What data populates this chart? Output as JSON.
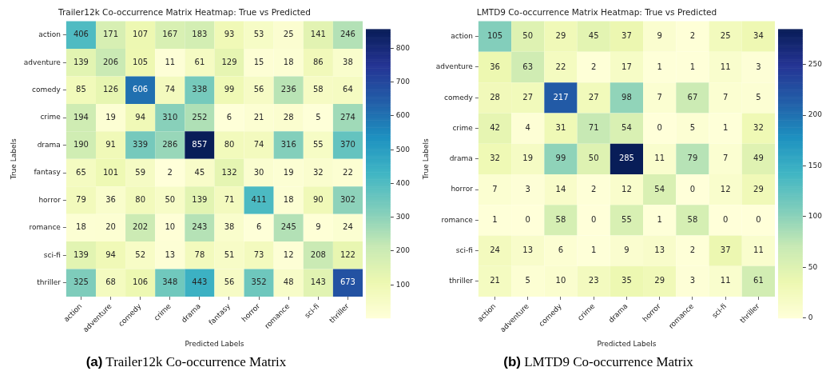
{
  "chart_data": [
    {
      "type": "heatmap",
      "title": "Trailer12k Co-occurrence Matrix Heatmap: True vs Predicted",
      "xlabel": "Predicted Labels",
      "ylabel": "True Labels",
      "categories": [
        "action",
        "adventure",
        "comedy",
        "crime",
        "drama",
        "fantasy",
        "horror",
        "romance",
        "sci-fi",
        "thriller"
      ],
      "y_categories": [
        "action",
        "adventure",
        "comedy",
        "crime",
        "drama",
        "fantasy",
        "horror",
        "romance",
        "sci-fi",
        "thriller"
      ],
      "cells": [
        [
          406,
          171,
          107,
          167,
          183,
          93,
          53,
          25,
          141,
          246
        ],
        [
          139,
          206,
          105,
          11,
          61,
          129,
          15,
          18,
          86,
          38
        ],
        [
          85,
          126,
          606,
          74,
          338,
          99,
          56,
          236,
          58,
          64
        ],
        [
          194,
          19,
          94,
          310,
          252,
          6,
          21,
          28,
          5,
          274
        ],
        [
          190,
          91,
          339,
          286,
          857,
          80,
          74,
          316,
          55,
          370
        ],
        [
          65,
          101,
          59,
          2,
          45,
          132,
          30,
          19,
          32,
          22
        ],
        [
          79,
          36,
          80,
          50,
          139,
          71,
          411,
          18,
          90,
          302
        ],
        [
          18,
          20,
          202,
          10,
          243,
          38,
          6,
          245,
          9,
          24
        ],
        [
          139,
          94,
          52,
          13,
          78,
          51,
          73,
          12,
          208,
          122
        ],
        [
          325,
          68,
          106,
          348,
          443,
          56,
          352,
          48,
          143,
          673
        ]
      ],
      "data_labels": true,
      "clim": [
        2,
        857
      ],
      "cticks": [
        100,
        200,
        300,
        400,
        500,
        600,
        700,
        800
      ],
      "annotations": [
        "(a) Trailer12k Co-occurrence Matrix"
      ]
    },
    {
      "type": "heatmap",
      "title": "LMTD9 Co-occurrence Matrix Heatmap: True vs Predicted",
      "xlabel": "Predicted Labels",
      "ylabel": "True Labels",
      "categories": [
        "action",
        "adventure",
        "comedy",
        "crime",
        "drama",
        "horror",
        "romance",
        "sci-fi",
        "thriller"
      ],
      "y_categories": [
        "action",
        "adventure",
        "comedy",
        "crime",
        "drama",
        "horror",
        "romance",
        "sci-fi",
        "thriller"
      ],
      "cells": [
        [
          105,
          50,
          29,
          45,
          37,
          9,
          2,
          25,
          34
        ],
        [
          36,
          63,
          22,
          2,
          17,
          1,
          1,
          11,
          3
        ],
        [
          28,
          27,
          217,
          27,
          98,
          7,
          67,
          7,
          5
        ],
        [
          42,
          4,
          31,
          71,
          54,
          0,
          5,
          1,
          32
        ],
        [
          32,
          19,
          99,
          50,
          285,
          11,
          79,
          7,
          49
        ],
        [
          7,
          3,
          14,
          2,
          12,
          54,
          0,
          12,
          29
        ],
        [
          1,
          0,
          58,
          0,
          55,
          1,
          58,
          0,
          0
        ],
        [
          24,
          13,
          6,
          1,
          9,
          13,
          2,
          37,
          11
        ],
        [
          21,
          5,
          10,
          23,
          35,
          29,
          3,
          11,
          61
        ]
      ],
      "data_labels": true,
      "clim": [
        0,
        285
      ],
      "cticks": [
        0,
        50,
        100,
        150,
        200,
        250
      ],
      "annotations": [
        "(b) LMTD9 Co-occurrence Matrix"
      ]
    }
  ]
}
